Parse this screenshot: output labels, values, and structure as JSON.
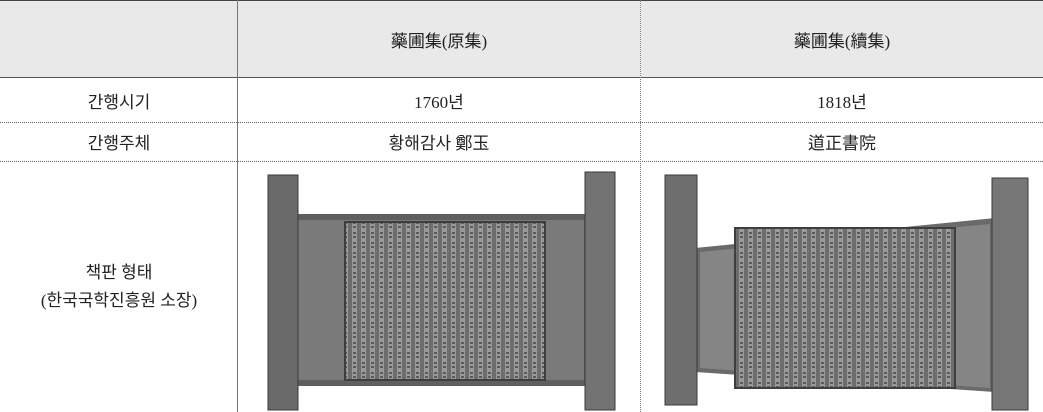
{
  "table": {
    "header": [
      "藥圃集(原集)",
      "藥圃集(續集)"
    ],
    "rows": [
      {
        "label": "간행시기",
        "cells": [
          "1760년",
          "1818년"
        ]
      },
      {
        "label": "간행주체",
        "cells": [
          "황해감사 鄭玉",
          "道正書院"
        ]
      },
      {
        "label_lines": [
          "책판 형태",
          "(한국국학진흥원 소장)"
        ]
      }
    ]
  }
}
